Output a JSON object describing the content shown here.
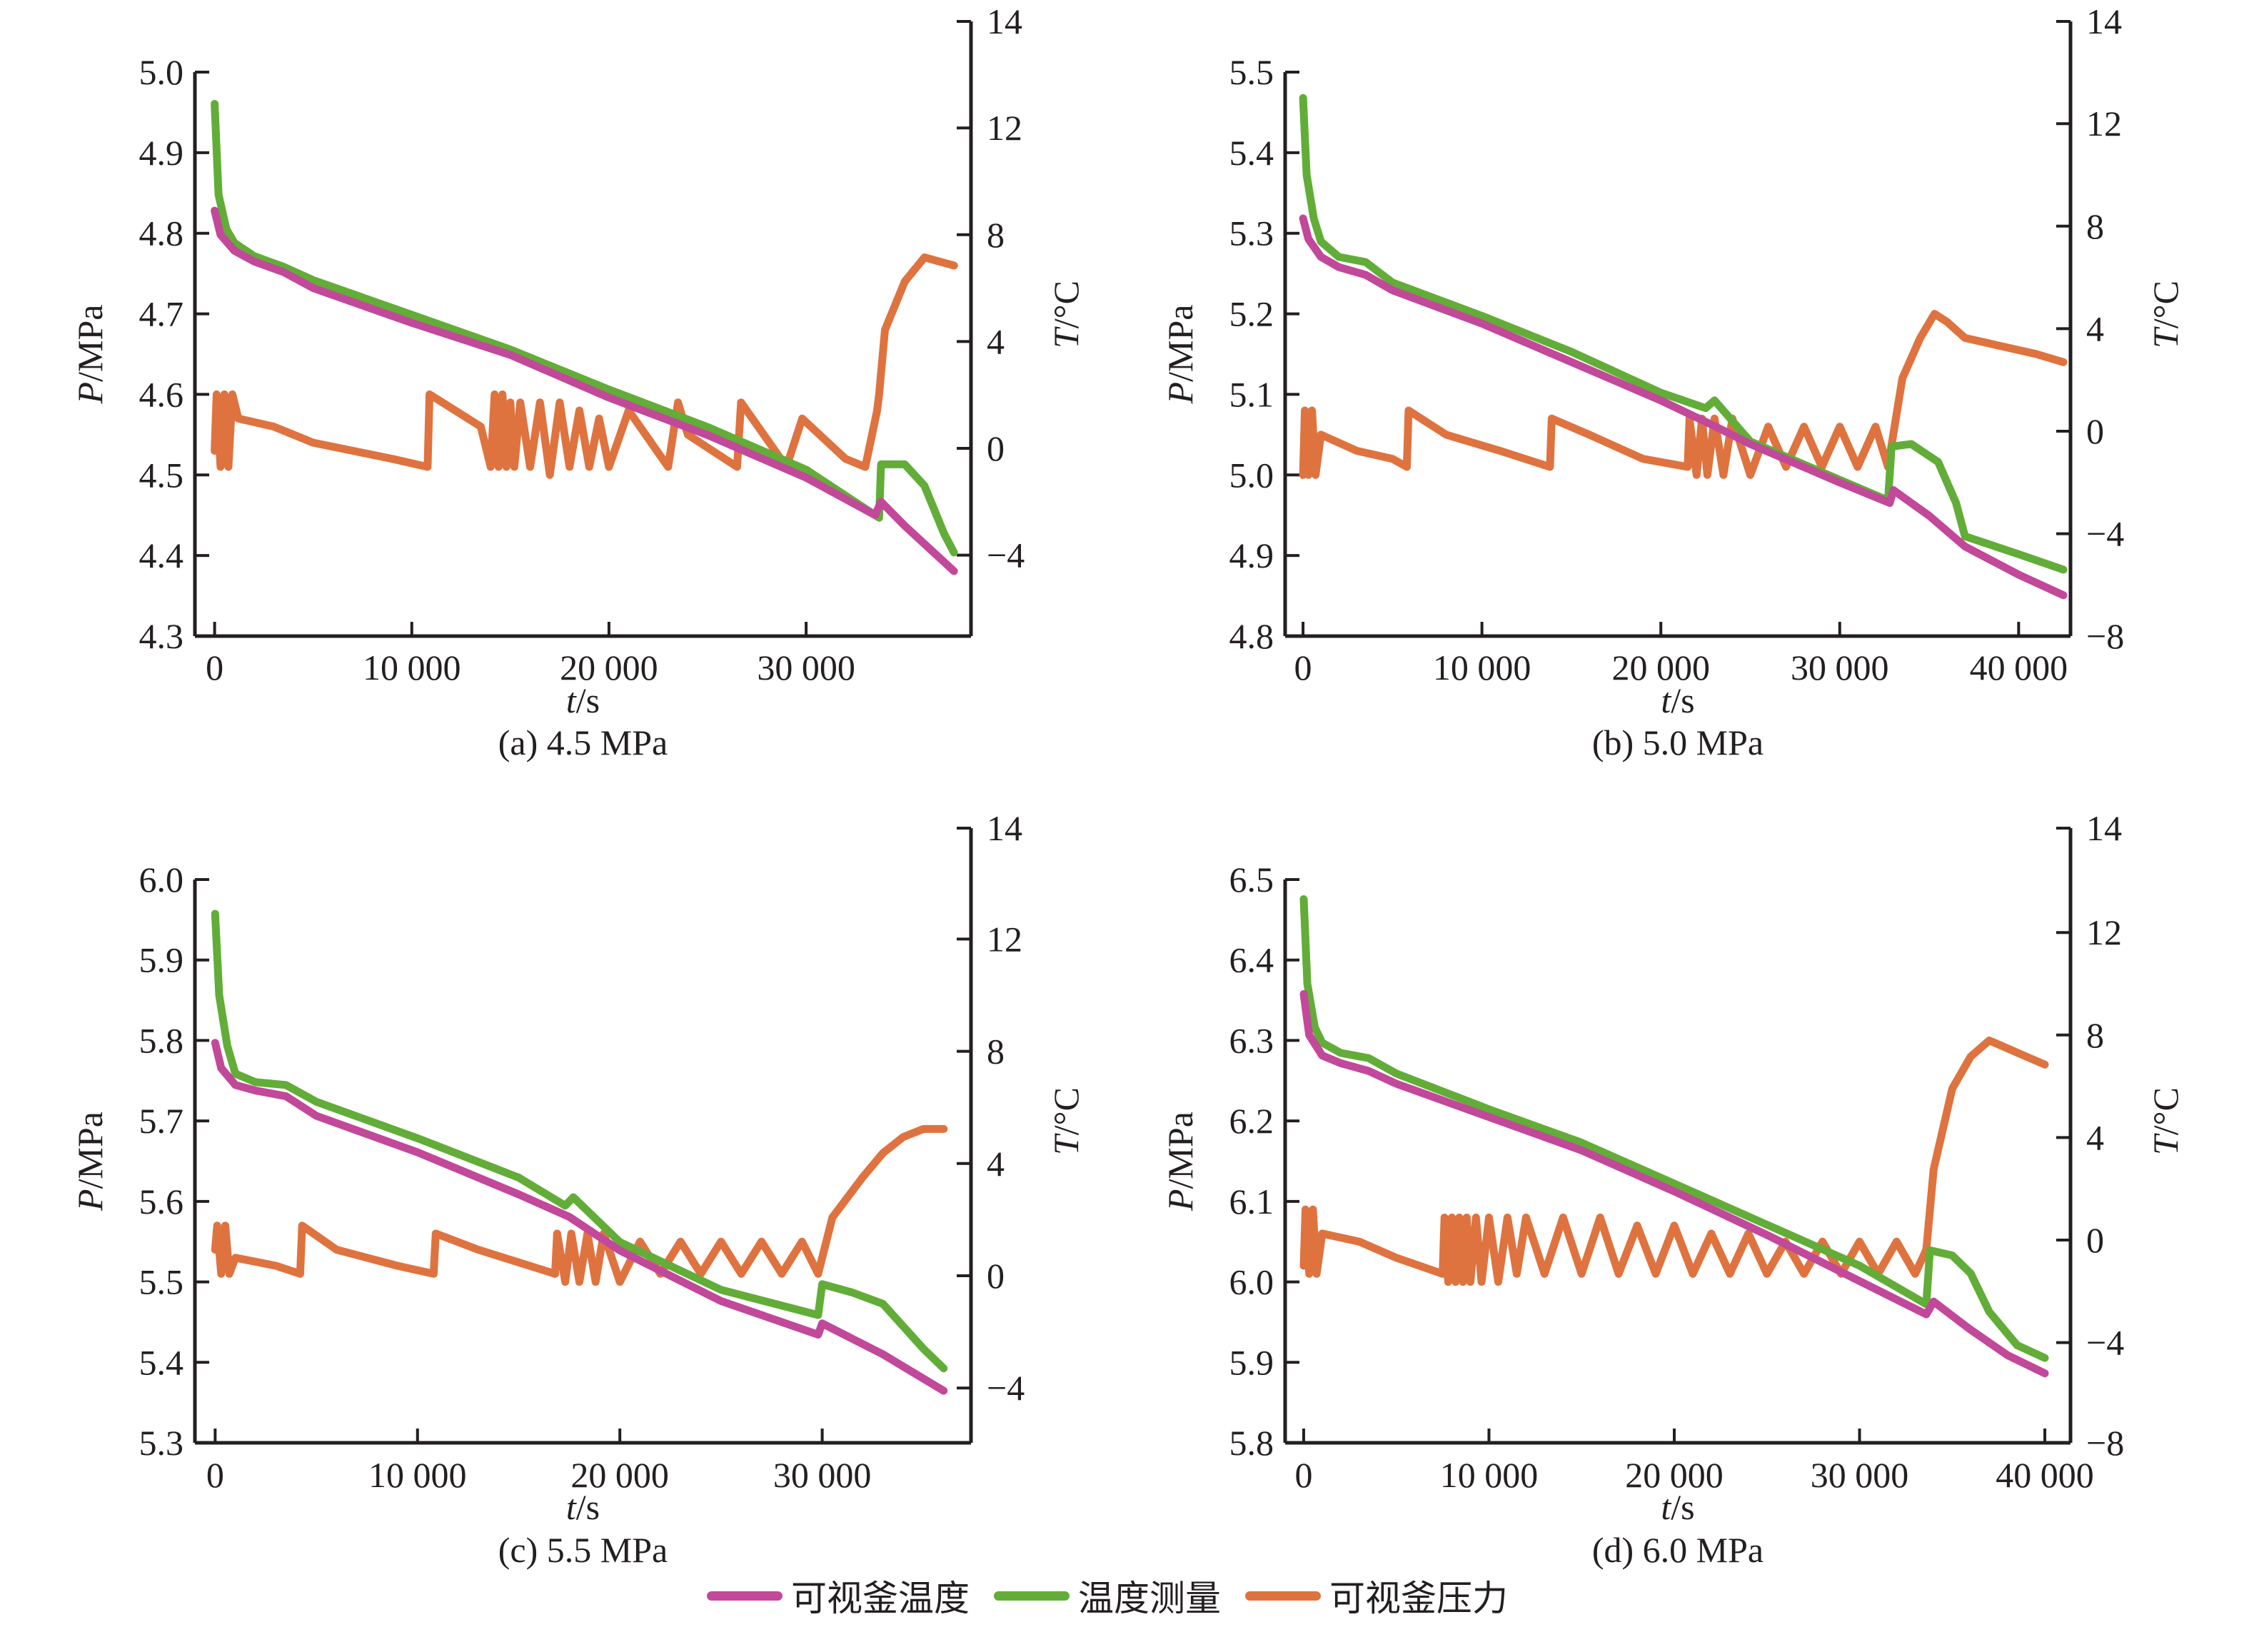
{
  "figure": {
    "legend": [
      {
        "label": "可视釜温度",
        "color": "#c2489a"
      },
      {
        "label": "温度测量",
        "color": "#62ad38"
      },
      {
        "label": "可视釜压力",
        "color": "#de7340"
      }
    ]
  },
  "chart_data": [
    {
      "type": "line",
      "caption": "(a) 4.5 MPa",
      "xlabel_italic": "t",
      "xlabel_unit": "/s",
      "ylabel_left_italic": "P",
      "ylabel_left_unit": "/MPa",
      "ylabel_right_italic": "T",
      "ylabel_right_unit": "/°C",
      "xlim": [
        -1000,
        38000
      ],
      "x_ticks": [
        0,
        10000,
        20000,
        30000
      ],
      "x_tick_labels": [
        "0",
        "10 000",
        "20 000",
        "30 000"
      ],
      "ylim_left": [
        4.3,
        5.0
      ],
      "y_left_ticks": [
        4.3,
        4.4,
        4.5,
        4.6,
        4.7,
        4.8,
        4.9,
        5.0
      ],
      "y_left_tick_labels": [
        "4.3",
        "4.4",
        "4.5",
        "4.6",
        "4.7",
        "4.8",
        "4.9",
        "5.0"
      ],
      "ylim_right": [
        -7,
        14
      ],
      "y_right_ticks": [
        -4,
        0,
        4,
        8,
        12,
        14
      ],
      "y_right_tick_labels": [
        "−4",
        "0",
        "4",
        "8",
        "12",
        "14"
      ],
      "series": [
        {
          "name": "可视釜温度",
          "axis": "right",
          "color": "#c2489a",
          "t": [
            0,
            300,
            1000,
            2000,
            3500,
            5000,
            10000,
            15000,
            20000,
            25000,
            30000,
            33500,
            33800,
            35000,
            37500
          ],
          "values": [
            8.9,
            8.0,
            7.4,
            7.0,
            6.6,
            6.0,
            4.7,
            3.5,
            1.9,
            0.5,
            -1.1,
            -2.5,
            -2.0,
            -2.9,
            -4.6
          ]
        },
        {
          "name": "温度测量",
          "axis": "right",
          "color": "#62ad38",
          "t": [
            0,
            200,
            600,
            1000,
            2000,
            3500,
            5000,
            10000,
            15000,
            20000,
            25000,
            30000,
            33700,
            33800,
            35000,
            36000,
            37000,
            37500
          ],
          "values": [
            12.9,
            9.5,
            8.2,
            7.7,
            7.2,
            6.8,
            6.3,
            5.0,
            3.7,
            2.2,
            0.8,
            -0.8,
            -2.6,
            -0.6,
            -0.6,
            -1.4,
            -3.2,
            -3.9
          ]
        },
        {
          "name": "可视釜压力",
          "axis": "left",
          "color": "#de7340",
          "t": [
            0,
            100,
            300,
            500,
            700,
            900,
            1200,
            3000,
            5000,
            7000,
            9000,
            10800,
            10900,
            13500,
            14000,
            14200,
            14400,
            14600,
            14800,
            15000,
            15200,
            15500,
            16000,
            16500,
            17000,
            17500,
            18000,
            18500,
            19000,
            19500,
            20000,
            21000,
            23000,
            23500,
            24000,
            26500,
            26700,
            29000,
            29800,
            32000,
            33000,
            33600,
            33700,
            34000,
            35000,
            36000,
            37500
          ],
          "values": [
            4.53,
            4.6,
            4.51,
            4.6,
            4.51,
            4.6,
            4.57,
            4.56,
            4.54,
            4.53,
            4.52,
            4.51,
            4.6,
            4.56,
            4.51,
            4.6,
            4.51,
            4.6,
            4.51,
            4.59,
            4.51,
            4.59,
            4.51,
            4.59,
            4.5,
            4.59,
            4.51,
            4.58,
            4.51,
            4.57,
            4.51,
            4.58,
            4.51,
            4.59,
            4.55,
            4.51,
            4.59,
            4.51,
            4.57,
            4.52,
            4.51,
            4.58,
            4.6,
            4.68,
            4.74,
            4.77,
            4.76
          ]
        }
      ]
    },
    {
      "type": "line",
      "caption": "(b) 5.0 MPa",
      "xlabel_italic": "t",
      "xlabel_unit": "/s",
      "ylabel_left_italic": "P",
      "ylabel_left_unit": "/MPa",
      "ylabel_right_italic": "T",
      "ylabel_right_unit": "/°C",
      "xlim": [
        -1000,
        42500
      ],
      "x_ticks": [
        0,
        10000,
        20000,
        30000,
        40000
      ],
      "x_tick_labels": [
        "0",
        "10 000",
        "20 000",
        "30 000",
        "40 000"
      ],
      "ylim_left": [
        4.8,
        5.5
      ],
      "y_left_ticks": [
        4.8,
        4.9,
        5.0,
        5.1,
        5.2,
        5.3,
        5.4,
        5.5
      ],
      "y_left_tick_labels": [
        "4.8",
        "4.9",
        "5.0",
        "5.1",
        "5.2",
        "5.3",
        "5.4",
        "5.5"
      ],
      "ylim_right": [
        -8,
        14
      ],
      "y_right_ticks": [
        -8,
        -4,
        0,
        4,
        8,
        12,
        14
      ],
      "y_right_tick_labels": [
        "−8",
        "−4",
        "0",
        "4",
        "8",
        "12",
        "14"
      ],
      "series": [
        {
          "name": "可视釜温度",
          "axis": "right",
          "color": "#c2489a",
          "t": [
            0,
            300,
            1000,
            2000,
            3500,
            5000,
            10000,
            15000,
            20000,
            23000,
            25000,
            30000,
            32800,
            33000,
            35000,
            37000,
            40000,
            42500
          ],
          "values": [
            8.3,
            7.5,
            6.8,
            6.4,
            6.1,
            5.5,
            4.2,
            2.7,
            1.2,
            0.2,
            -0.5,
            -2.0,
            -2.8,
            -2.3,
            -3.3,
            -4.5,
            -5.6,
            -6.4
          ]
        },
        {
          "name": "温度测量",
          "axis": "right",
          "color": "#62ad38",
          "t": [
            0,
            200,
            600,
            1000,
            2000,
            3500,
            5000,
            10000,
            15000,
            20000,
            22500,
            23000,
            25000,
            30000,
            32700,
            32900,
            34000,
            35500,
            36500,
            37000,
            40000,
            42500
          ],
          "values": [
            13.0,
            10.0,
            8.3,
            7.4,
            6.8,
            6.6,
            5.8,
            4.5,
            3.1,
            1.5,
            0.9,
            1.2,
            -0.4,
            -1.9,
            -2.7,
            -0.6,
            -0.5,
            -1.2,
            -2.8,
            -4.1,
            -4.8,
            -5.4
          ]
        },
        {
          "name": "可视釜压力",
          "axis": "left",
          "color": "#de7340",
          "t": [
            0,
            100,
            300,
            500,
            700,
            1000,
            3000,
            5000,
            5800,
            5900,
            8000,
            11000,
            13800,
            13900,
            16000,
            19000,
            21500,
            21600,
            22000,
            22300,
            22600,
            23000,
            23500,
            24000,
            25000,
            26000,
            27000,
            28000,
            29000,
            30000,
            31000,
            32000,
            32700,
            33500,
            34500,
            35300,
            36000,
            37000,
            39000,
            41000,
            42500
          ],
          "values": [
            5.0,
            5.08,
            5.0,
            5.08,
            5.0,
            5.05,
            5.03,
            5.02,
            5.01,
            5.08,
            5.05,
            5.03,
            5.01,
            5.07,
            5.05,
            5.02,
            5.01,
            5.07,
            5.0,
            5.07,
            5.0,
            5.07,
            5.0,
            5.07,
            5.0,
            5.06,
            5.01,
            5.06,
            5.01,
            5.06,
            5.01,
            5.06,
            5.01,
            5.12,
            5.17,
            5.2,
            5.19,
            5.17,
            5.16,
            5.15,
            5.14
          ]
        }
      ]
    },
    {
      "type": "line",
      "caption": "(c) 5.5 MPa",
      "xlabel_italic": "t",
      "xlabel_unit": "/s",
      "ylabel_left_italic": "P",
      "ylabel_left_unit": "/MPa",
      "ylabel_right_italic": "T",
      "ylabel_right_unit": "/°C",
      "xlim": [
        -1000,
        37000
      ],
      "x_ticks": [
        0,
        10000,
        20000,
        30000
      ],
      "x_tick_labels": [
        "0",
        "10 000",
        "20 000",
        "30 000"
      ],
      "ylim_left": [
        5.3,
        6.0
      ],
      "y_left_ticks": [
        5.3,
        5.4,
        5.5,
        5.6,
        5.7,
        5.8,
        5.9,
        6.0
      ],
      "y_left_tick_labels": [
        "5.3",
        "5.4",
        "5.5",
        "5.6",
        "5.7",
        "5.8",
        "5.9",
        "6.0"
      ],
      "ylim_right": [
        -6,
        14
      ],
      "y_right_ticks": [
        -4,
        0,
        4,
        8,
        12,
        14
      ],
      "y_right_tick_labels": [
        "−4",
        "0",
        "4",
        "8",
        "12",
        "14"
      ],
      "series": [
        {
          "name": "可视釜温度",
          "axis": "right",
          "color": "#c2489a",
          "t": [
            0,
            300,
            1000,
            2000,
            3500,
            5000,
            10000,
            15000,
            17500,
            20000,
            25000,
            29800,
            30000,
            33000,
            36000
          ],
          "values": [
            8.3,
            7.4,
            6.8,
            6.6,
            6.4,
            5.7,
            4.4,
            2.9,
            2.1,
            0.9,
            -0.9,
            -2.1,
            -1.7,
            -2.8,
            -4.1
          ]
        },
        {
          "name": "温度测量",
          "axis": "right",
          "color": "#62ad38",
          "t": [
            0,
            200,
            600,
            1000,
            2000,
            3500,
            5000,
            10000,
            15000,
            17300,
            17700,
            20000,
            25000,
            29800,
            30000,
            31500,
            33000,
            35000,
            36000
          ],
          "values": [
            12.9,
            10.0,
            8.2,
            7.2,
            6.9,
            6.8,
            6.2,
            4.9,
            3.5,
            2.5,
            2.8,
            1.2,
            -0.5,
            -1.4,
            -0.3,
            -0.6,
            -1.0,
            -2.6,
            -3.3
          ]
        },
        {
          "name": "可视釜压力",
          "axis": "left",
          "color": "#de7340",
          "t": [
            0,
            100,
            300,
            500,
            700,
            1000,
            3000,
            4200,
            4300,
            6000,
            9000,
            10800,
            10900,
            13000,
            16800,
            16900,
            17300,
            17600,
            18000,
            18400,
            18800,
            19200,
            20000,
            21000,
            22000,
            23000,
            24000,
            25000,
            26000,
            27000,
            28000,
            29000,
            29800,
            30500,
            32000,
            33000,
            34000,
            35000,
            36000
          ],
          "values": [
            5.54,
            5.57,
            5.51,
            5.57,
            5.51,
            5.53,
            5.52,
            5.51,
            5.57,
            5.54,
            5.52,
            5.51,
            5.56,
            5.54,
            5.51,
            5.56,
            5.5,
            5.56,
            5.5,
            5.56,
            5.5,
            5.56,
            5.5,
            5.55,
            5.51,
            5.55,
            5.51,
            5.55,
            5.51,
            5.55,
            5.51,
            5.55,
            5.51,
            5.58,
            5.63,
            5.66,
            5.68,
            5.69,
            5.69
          ]
        }
      ]
    },
    {
      "type": "line",
      "caption": "(d) 6.0 MPa",
      "xlabel_italic": "t",
      "xlabel_unit": "/s",
      "ylabel_left_italic": "P",
      "ylabel_left_unit": "/MPa",
      "ylabel_right_italic": "T",
      "ylabel_right_unit": "/°C",
      "xlim": [
        -1000,
        41000
      ],
      "x_ticks": [
        0,
        10000,
        20000,
        30000,
        40000
      ],
      "x_tick_labels": [
        "0",
        "10 000",
        "20 000",
        "30 000",
        "40 000"
      ],
      "ylim_left": [
        5.8,
        6.5
      ],
      "y_left_ticks": [
        5.8,
        5.9,
        6.0,
        6.1,
        6.2,
        6.3,
        6.4,
        6.5
      ],
      "y_left_tick_labels": [
        "5.8",
        "5.9",
        "6.0",
        "6.1",
        "6.2",
        "6.3",
        "6.4",
        "6.5"
      ],
      "ylim_right": [
        -8,
        14
      ],
      "y_right_ticks": [
        -8,
        -4,
        0,
        4,
        8,
        12,
        14
      ],
      "y_right_tick_labels": [
        "−8",
        "−4",
        "0",
        "4",
        "8",
        "12",
        "14"
      ],
      "series": [
        {
          "name": "可视釜温度",
          "axis": "right",
          "color": "#c2489a",
          "t": [
            0,
            300,
            1000,
            2000,
            3500,
            5000,
            10000,
            15000,
            20000,
            25000,
            30000,
            33600,
            34000,
            36000,
            38000,
            40000
          ],
          "values": [
            9.6,
            8.0,
            7.2,
            6.9,
            6.6,
            6.1,
            4.8,
            3.5,
            1.9,
            0.2,
            -1.6,
            -2.9,
            -2.4,
            -3.5,
            -4.5,
            -5.2
          ]
        },
        {
          "name": "温度测量",
          "axis": "right",
          "color": "#62ad38",
          "t": [
            0,
            200,
            600,
            1000,
            2000,
            3500,
            5000,
            10000,
            15000,
            20000,
            25000,
            30000,
            33600,
            33800,
            35000,
            36000,
            37000,
            38500,
            40000
          ],
          "values": [
            13.3,
            10.0,
            8.3,
            7.7,
            7.3,
            7.1,
            6.5,
            5.1,
            3.8,
            2.2,
            0.6,
            -1.0,
            -2.5,
            -0.4,
            -0.6,
            -1.3,
            -2.8,
            -4.1,
            -4.6
          ]
        },
        {
          "name": "可视釜压力",
          "axis": "left",
          "color": "#de7340",
          "t": [
            0,
            100,
            300,
            500,
            700,
            1000,
            3000,
            5000,
            7500,
            7600,
            7800,
            8000,
            8200,
            8400,
            8600,
            8800,
            9000,
            9300,
            9600,
            10000,
            10500,
            11000,
            11500,
            12000,
            13000,
            14000,
            15000,
            16000,
            17000,
            18000,
            19000,
            20000,
            21000,
            22000,
            23000,
            24000,
            25000,
            26000,
            27000,
            28000,
            29000,
            30000,
            31000,
            32000,
            33000,
            33600,
            34000,
            35000,
            36000,
            37000,
            38000,
            39000,
            40000
          ],
          "values": [
            6.02,
            6.09,
            6.01,
            6.09,
            6.01,
            6.06,
            6.05,
            6.03,
            6.01,
            6.08,
            6.0,
            6.08,
            6.0,
            6.08,
            6.0,
            6.08,
            6.0,
            6.08,
            6.0,
            6.08,
            6.0,
            6.08,
            6.01,
            6.08,
            6.01,
            6.08,
            6.01,
            6.08,
            6.01,
            6.07,
            6.01,
            6.07,
            6.01,
            6.06,
            6.01,
            6.06,
            6.01,
            6.05,
            6.01,
            6.05,
            6.01,
            6.05,
            6.01,
            6.05,
            6.01,
            6.04,
            6.14,
            6.24,
            6.28,
            6.3,
            6.29,
            6.28,
            6.27
          ]
        }
      ]
    }
  ]
}
